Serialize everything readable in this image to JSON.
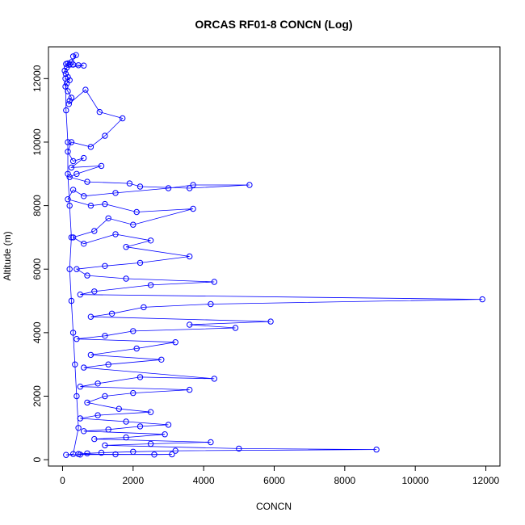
{
  "chart_data": {
    "type": "scatter",
    "title": "ORCAS RF01-8 CONCN (Log)",
    "xlabel": "CONCN",
    "ylabel": "Altitude (m)",
    "xlim": [
      -400,
      12400
    ],
    "ylim": [
      -200,
      13000
    ],
    "xticks": [
      0,
      2000,
      4000,
      6000,
      8000,
      10000,
      12000
    ],
    "yticks": [
      0,
      2000,
      4000,
      6000,
      8000,
      10000,
      12000
    ],
    "color": "#0000ff",
    "marker": "open-circle",
    "connected": true,
    "grid": false,
    "legend": "none",
    "series": [
      {
        "points": [
          [
            300,
            12700
          ],
          [
            380,
            12740
          ],
          [
            250,
            12520
          ],
          [
            150,
            12480
          ],
          [
            100,
            12460
          ],
          [
            200,
            12450
          ],
          [
            300,
            12440
          ],
          [
            450,
            12420
          ],
          [
            600,
            12410
          ],
          [
            120,
            12350
          ],
          [
            60,
            12250
          ],
          [
            90,
            12150
          ],
          [
            150,
            12050
          ],
          [
            200,
            11950
          ],
          [
            120,
            11850
          ],
          [
            80,
            11750
          ],
          [
            150,
            11600
          ],
          [
            250,
            11400
          ],
          [
            200,
            11300
          ],
          [
            180,
            11200
          ],
          [
            650,
            11650
          ],
          [
            1050,
            10950
          ],
          [
            1700,
            10750
          ],
          [
            1200,
            10200
          ],
          [
            800,
            9850
          ],
          [
            250,
            10000
          ],
          [
            150,
            9700
          ],
          [
            300,
            9400
          ],
          [
            600,
            9500
          ],
          [
            250,
            9200
          ],
          [
            1100,
            9250
          ],
          [
            400,
            9000
          ],
          [
            200,
            8900
          ],
          [
            700,
            8750
          ],
          [
            1900,
            8700
          ],
          [
            2200,
            8600
          ],
          [
            3600,
            8550
          ],
          [
            5300,
            8650
          ],
          [
            3700,
            8650
          ],
          [
            3000,
            8550
          ],
          [
            1500,
            8400
          ],
          [
            600,
            8300
          ],
          [
            300,
            8500
          ],
          [
            150,
            8200
          ],
          [
            800,
            8000
          ],
          [
            1200,
            8050
          ],
          [
            2100,
            7800
          ],
          [
            3700,
            7900
          ],
          [
            2000,
            7400
          ],
          [
            1300,
            7600
          ],
          [
            900,
            7200
          ],
          [
            300,
            7000
          ],
          [
            600,
            6800
          ],
          [
            1500,
            7100
          ],
          [
            2500,
            6900
          ],
          [
            1800,
            6700
          ],
          [
            3600,
            6400
          ],
          [
            2200,
            6200
          ],
          [
            1200,
            6100
          ],
          [
            400,
            6000
          ],
          [
            700,
            5800
          ],
          [
            1800,
            5700
          ],
          [
            4300,
            5600
          ],
          [
            2500,
            5500
          ],
          [
            900,
            5300
          ],
          [
            500,
            5200
          ],
          [
            11900,
            5050
          ],
          [
            4200,
            4900
          ],
          [
            2300,
            4800
          ],
          [
            1400,
            4600
          ],
          [
            800,
            4500
          ],
          [
            5900,
            4350
          ],
          [
            3600,
            4250
          ],
          [
            4900,
            4150
          ],
          [
            2000,
            4050
          ],
          [
            1200,
            3900
          ],
          [
            400,
            3800
          ],
          [
            3200,
            3700
          ],
          [
            2100,
            3500
          ],
          [
            800,
            3300
          ],
          [
            2800,
            3150
          ],
          [
            1300,
            3000
          ],
          [
            600,
            2900
          ],
          [
            4300,
            2550
          ],
          [
            2200,
            2600
          ],
          [
            1000,
            2400
          ],
          [
            500,
            2300
          ],
          [
            3600,
            2200
          ],
          [
            2000,
            2100
          ],
          [
            1200,
            2000
          ],
          [
            700,
            1800
          ],
          [
            1600,
            1600
          ],
          [
            2500,
            1500
          ],
          [
            1000,
            1400
          ],
          [
            500,
            1300
          ],
          [
            1800,
            1200
          ],
          [
            3000,
            1100
          ],
          [
            2200,
            1050
          ],
          [
            1300,
            950
          ],
          [
            600,
            900
          ],
          [
            2900,
            800
          ],
          [
            1800,
            700
          ],
          [
            900,
            650
          ],
          [
            4200,
            550
          ],
          [
            2500,
            500
          ],
          [
            1200,
            450
          ],
          [
            5000,
            350
          ],
          [
            8900,
            320
          ],
          [
            3200,
            280
          ],
          [
            2000,
            250
          ],
          [
            1100,
            220
          ],
          [
            700,
            200
          ],
          [
            450,
            180
          ],
          [
            1500,
            170
          ],
          [
            2600,
            160
          ],
          [
            3100,
            170
          ],
          [
            500,
            160
          ],
          [
            100,
            150
          ],
          [
            300,
            180
          ],
          [
            450,
            1000
          ],
          [
            400,
            2000
          ],
          [
            350,
            3000
          ],
          [
            300,
            4000
          ],
          [
            250,
            5000
          ],
          [
            200,
            6000
          ],
          [
            250,
            7000
          ],
          [
            200,
            8000
          ],
          [
            150,
            9000
          ],
          [
            150,
            10000
          ],
          [
            100,
            11000
          ],
          [
            80,
            12000
          ]
        ]
      }
    ]
  }
}
